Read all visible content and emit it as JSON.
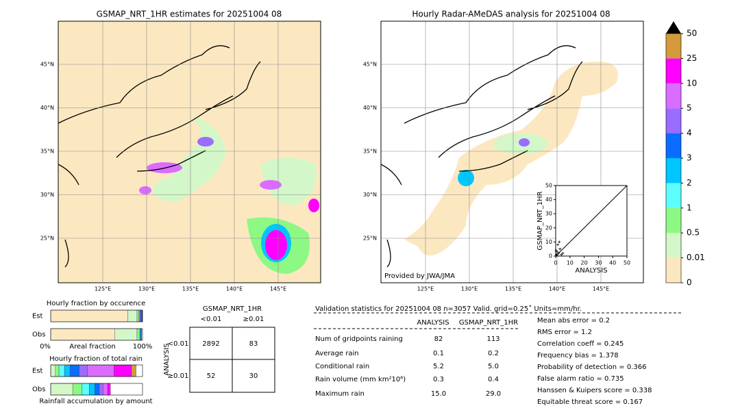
{
  "left_map": {
    "title": "GSMAP_NRT_1HR estimates for 20251004 08",
    "lat_ticks": [
      {
        "value": 45,
        "label": "45°N"
      },
      {
        "value": 40,
        "label": "40°N"
      },
      {
        "value": 35,
        "label": "35°N"
      },
      {
        "value": 30,
        "label": "30°N"
      },
      {
        "value": 25,
        "label": "25°N"
      }
    ],
    "lon_ticks": [
      {
        "value": 125,
        "label": "125°E"
      },
      {
        "value": 130,
        "label": "130°E"
      },
      {
        "value": 135,
        "label": "135°E"
      },
      {
        "value": 140,
        "label": "140°E"
      },
      {
        "value": 145,
        "label": "145°E"
      }
    ]
  },
  "right_map": {
    "title": "Hourly Radar-AMeDAS analysis for 20251004 08",
    "credit": "Provided by JWA/JMA",
    "lat_ticks": [
      {
        "value": 45,
        "label": "45°N"
      },
      {
        "value": 40,
        "label": "40°N"
      },
      {
        "value": 35,
        "label": "35°N"
      },
      {
        "value": 30,
        "label": "30°N"
      },
      {
        "value": 25,
        "label": "25°N"
      }
    ],
    "lon_ticks": [
      {
        "value": 125,
        "label": "125°E"
      },
      {
        "value": 130,
        "label": "130°E"
      },
      {
        "value": 135,
        "label": "135°E"
      },
      {
        "value": 140,
        "label": "140°E"
      },
      {
        "value": 145,
        "label": "145°E"
      }
    ]
  },
  "inset": {
    "xlabel": "ANALYSIS",
    "ylabel": "GSMAP_NRT_1HR",
    "xlim": [
      0,
      50
    ],
    "ylim": [
      0,
      50
    ],
    "xticks": [
      0,
      10,
      20,
      30,
      40,
      50
    ],
    "yticks": [
      0,
      10,
      20,
      30,
      40,
      50
    ],
    "x": [
      0.5,
      1,
      2,
      3,
      1.5,
      0.8,
      4,
      2.5,
      0.3,
      5
    ],
    "y": [
      1,
      3,
      2,
      5,
      8,
      0.5,
      1,
      10,
      4,
      2
    ]
  },
  "colorbar": {
    "levels": [
      0,
      0.01,
      0.5,
      1,
      2,
      3,
      4,
      5,
      10,
      25,
      50
    ],
    "colors": [
      "#fce8c0",
      "#d3f7c8",
      "#8ef884",
      "#5cfdfd",
      "#00c6ff",
      "#0a6cff",
      "#9a6cff",
      "#da6cff",
      "#ff00ff",
      "#d29a3c"
    ],
    "extend_color": "#000000"
  },
  "fraction_occurrence": {
    "title": "Hourly fraction by occurence",
    "rows": [
      "Est",
      "Obs"
    ],
    "axis_labels": [
      "0%",
      "Areal fraction",
      "100%"
    ],
    "est": [
      0.84,
      0.1,
      0.02,
      0.01,
      0.01,
      0.01,
      0.01
    ],
    "obs": [
      0.7,
      0.24,
      0.03,
      0.01,
      0.01
    ],
    "est_colors": [
      "#fce8c0",
      "#d3f7c8",
      "#8ef884",
      "#5cfdfd",
      "#0a6cff",
      "#9a6cff",
      "#333366"
    ],
    "obs_colors": [
      "#fce8c0",
      "#d3f7c8",
      "#8ef884",
      "#00c6ff",
      "#0a6cff"
    ]
  },
  "fraction_total": {
    "title": "Hourly fraction of total rain",
    "rows": [
      "Est",
      "Obs"
    ],
    "footer": "Rainfall accumulation by amount",
    "est": [
      0.05,
      0.04,
      0.06,
      0.06,
      0.1,
      0.09,
      0.29,
      0.19,
      0.05
    ],
    "obs": [
      0.24,
      0.1,
      0.08,
      0.06,
      0.05,
      0.04,
      0.05,
      0.03
    ],
    "est_colors": [
      "#d3f7c8",
      "#8ef884",
      "#5cfdfd",
      "#00c6ff",
      "#0a6cff",
      "#9a6cff",
      "#da6cff",
      "#ff00ff",
      "#d29a3c"
    ],
    "obs_colors": [
      "#d3f7c8",
      "#8ef884",
      "#5cfdfd",
      "#00c6ff",
      "#0a6cff",
      "#9a6cff",
      "#da6cff",
      "#ff00ff"
    ]
  },
  "contingency": {
    "title": "GSMAP_NRT_1HR",
    "col_labels": [
      "<0.01",
      "≥0.01"
    ],
    "row_title": "ANALYSIS",
    "row_labels": [
      "<0.01",
      "≥0.01"
    ],
    "cells": [
      [
        "2892",
        "83"
      ],
      [
        "52",
        "30"
      ]
    ]
  },
  "validation": {
    "header": "Validation statistics for 20251004 08  n=3057 Valid. grid=0.25˚ Units=mm/hr.",
    "columns": [
      "ANALYSIS",
      "GSMAP_NRT_1HR"
    ],
    "rows": [
      [
        "Num of gridpoints raining",
        "82",
        "113"
      ],
      [
        "Average rain",
        "0.1",
        "0.2"
      ],
      [
        "Conditional rain",
        "5.2",
        "5.0"
      ],
      [
        "Rain volume (mm km²10⁶)",
        "0.3",
        "0.4"
      ],
      [
        "Maximum rain",
        "15.0",
        "29.0"
      ]
    ],
    "scores": [
      "Mean abs error =    0.2",
      "RMS error =    1.2",
      "Correlation coeff =  0.245",
      "Frequency bias =  1.378",
      "Probability of detection =  0.366",
      "False alarm ratio =  0.735",
      "Hanssen & Kuipers score =  0.338",
      "Equitable threat score =  0.167"
    ]
  }
}
